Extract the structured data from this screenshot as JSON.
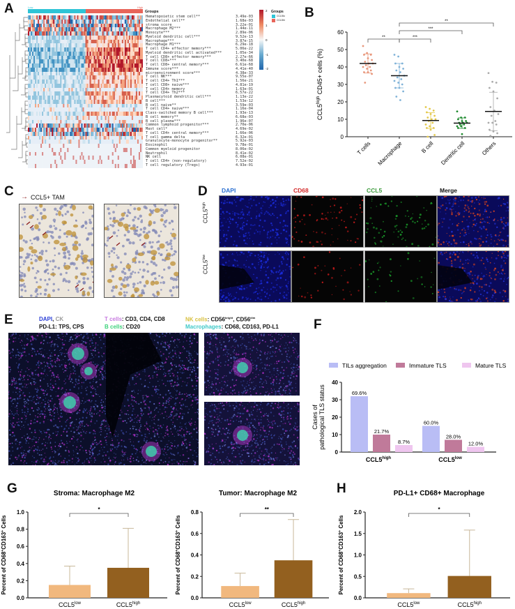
{
  "panels": {
    "A": {
      "letter": "A",
      "group_bar": {
        "low_label": "Low",
        "high_label": "High",
        "low_color": "#2ec4d6",
        "high_color": "#e8655a"
      },
      "groups_header": "Groups",
      "legend": {
        "title": "Groups",
        "items": [
          {
            "label": "CCL5lo",
            "color": "#2ec4d6"
          },
          {
            "label": "CCL5hi",
            "color": "#e8655a"
          }
        ],
        "scale_ticks": [
          "2",
          "1",
          "0",
          "-1",
          "-2"
        ],
        "scale_colors": {
          "high": "#b2182b",
          "mid": "#f7f7f7",
          "low": "#2166ac"
        }
      },
      "rows": [
        {
          "label": "Hematopoietic stem cell**",
          "p": "3.49e-03",
          "pattern": "mixed"
        },
        {
          "label": "Endothelial cell**",
          "p": "1.68e-03",
          "pattern": "mixed"
        },
        {
          "label": "stroma score",
          "p": "3.22e-01",
          "pattern": "mixed"
        },
        {
          "label": "Macrophage M2***",
          "p": "1.44e-11",
          "pattern": "mixed"
        },
        {
          "label": "Monocyte***",
          "p": "2.89e-06",
          "pattern": "mixed"
        },
        {
          "label": "Myeloid dendritic cell***",
          "p": "9.52e-13",
          "pattern": "split"
        },
        {
          "label": "Macrophage***",
          "p": "3.87e-15",
          "pattern": "split"
        },
        {
          "label": "Macrophage M1***",
          "p": "6.29e-18",
          "pattern": "split"
        },
        {
          "label": "T cell CD4+ effector memory***",
          "p": "5.06e-22",
          "pattern": "strong"
        },
        {
          "label": "Myeloid dendritic cell activated***",
          "p": "1.05e-34",
          "pattern": "strong"
        },
        {
          "label": "T cell CD8+ effector memory***",
          "p": "2.27e-66",
          "pattern": "strong"
        },
        {
          "label": "T cell CD8+***",
          "p": "3.40e-68",
          "pattern": "strong"
        },
        {
          "label": "T cell CD8+ central memory***",
          "p": "6.61e-68",
          "pattern": "strong"
        },
        {
          "label": "Immune score***",
          "p": "4.41e-40",
          "pattern": "strong"
        },
        {
          "label": "microenvironment score***",
          "p": "4.38e-33",
          "pattern": "split"
        },
        {
          "label": "T cell NK***",
          "p": "9.55e-07",
          "pattern": "split"
        },
        {
          "label": "T cell CD4+ Th1***",
          "p": "1.56e-21",
          "pattern": "split"
        },
        {
          "label": "T cell CD8+ naive***",
          "p": "4.81e-19",
          "pattern": "split"
        },
        {
          "label": "T cell CD4+ memory",
          "p": "1.63e-01",
          "pattern": "pale"
        },
        {
          "label": "T cell CD4+ Th2***",
          "p": "6.57e-22",
          "pattern": "split"
        },
        {
          "label": "Plasmacytoid dendritic cell***",
          "p": "1.13e-22",
          "pattern": "split"
        },
        {
          "label": "B cell***",
          "p": "1.53e-12",
          "pattern": "split"
        },
        {
          "label": "B cell naive**",
          "p": "3.59e-03",
          "pattern": "pale"
        },
        {
          "label": "T cell CD4+ naive***",
          "p": "1.16e-04",
          "pattern": "pale"
        },
        {
          "label": "Class-switched memory B cell***",
          "p": "1.93e-13",
          "pattern": "split"
        },
        {
          "label": "B cell memory**",
          "p": "6.68e-03",
          "pattern": "pale"
        },
        {
          "label": "B cell plasma***",
          "p": "1.96e-07",
          "pattern": "pale"
        },
        {
          "label": "Common lymphoid progenitor***",
          "p": "2.70e-06",
          "pattern": "mixed"
        },
        {
          "label": "Mast cell*",
          "p": "4.69e-02",
          "pattern": "mixed"
        },
        {
          "label": "T cell CD4+ central memory***",
          "p": "1.66e-06",
          "pattern": "mixed"
        },
        {
          "label": "T cell gamma delta",
          "p": "6.32e-01",
          "pattern": "pale"
        },
        {
          "label": "Granulocyte-monocyte progenitor**",
          "p": "5.92e-03",
          "pattern": "pale"
        },
        {
          "label": "Eosinophil",
          "p": "9.78e-01",
          "pattern": "sparse"
        },
        {
          "label": "Common myeloid progenitor",
          "p": "8.06e-02",
          "pattern": "sparse"
        },
        {
          "label": "Neutrophil",
          "p": "8.41e-02",
          "pattern": "sparse"
        },
        {
          "label": "NK cell",
          "p": "6.08e-01",
          "pattern": "sparse"
        },
        {
          "label": "T cell CD4+ (non-regulatory)",
          "p": "7.52e-02",
          "pattern": "sparse"
        },
        {
          "label": "T cell regulatory (Tregs)",
          "p": "4.93e-01",
          "pattern": "sparse"
        }
      ]
    },
    "B": {
      "letter": "B"
    },
    "C": {
      "letter": "C",
      "legend_label": "CCL5+ TAM",
      "arrow_color": "#8b1a1a"
    },
    "D": {
      "letter": "D",
      "columns": [
        {
          "label": "DAPI",
          "color": "#2a6fd1"
        },
        {
          "label": "CD68",
          "color": "#d42a2a"
        },
        {
          "label": "CCL5",
          "color": "#3c9a3c"
        },
        {
          "label": "Merge",
          "color": "#111111"
        }
      ],
      "rows": [
        {
          "label": "CCL5",
          "sup": "high"
        },
        {
          "label": "CCL5",
          "sup": "low"
        }
      ]
    },
    "E": {
      "letter": "E",
      "legend": {
        "line1": [
          {
            "text": "DAPI",
            "color": "#2b3fd6"
          },
          {
            "text": ", ",
            "color": "#111"
          },
          {
            "text": "CK",
            "color": "#999999"
          }
        ],
        "line2": "PD-L1: TPS, CPS",
        "tcells": {
          "name": "T cells",
          "markers": ": CD3, CD4, CD8",
          "color": "#c77be0"
        },
        "bcells": {
          "name": "B cells",
          "markers": ": CD20",
          "color": "#3ed27c"
        },
        "nkcells": {
          "name": "NK cells",
          "markers": ": CD56",
          "sup1": "bright",
          "mid": ", CD56",
          "sup2": "dim",
          "color": "#d8c040"
        },
        "macrophages": {
          "name": "Macrophages",
          "markers": ": CD68, CD163, PD-L1",
          "color": "#3ec8c8"
        }
      }
    },
    "F": {
      "letter": "F"
    },
    "G": {
      "letter": "G"
    },
    "H": {
      "letter": "H"
    }
  },
  "chart_data": [
    {
      "id": "B",
      "type": "scatter",
      "title": "",
      "xlabel": "",
      "ylabel": "CCL5high CD45+ cells (%)",
      "ylim": [
        0,
        60
      ],
      "yticks": [
        0,
        10,
        20,
        30,
        40,
        50,
        60
      ],
      "categories": [
        "T cells",
        "Macrophage",
        "B cell",
        "Dentritic cell",
        "Others"
      ],
      "colors": [
        "#e8967a",
        "#7fb2d8",
        "#e3c84a",
        "#1e8a2e",
        "#aaaaaa"
      ],
      "means": [
        42,
        35,
        9.3,
        7.8,
        14.5
      ],
      "sd": [
        5.5,
        7,
        4.5,
        3,
        11
      ],
      "points": [
        [
          52,
          48,
          47,
          47,
          45,
          44,
          43,
          42,
          42,
          41,
          40,
          40,
          39,
          38,
          37,
          37,
          36,
          31
        ],
        [
          47,
          46,
          42,
          42,
          40,
          39,
          38,
          37,
          35,
          34,
          33,
          32,
          31,
          30,
          28,
          28,
          26,
          23,
          21
        ],
        [
          17,
          16,
          15,
          14,
          13,
          12,
          11,
          10,
          10,
          9,
          8,
          7,
          6,
          5,
          5,
          4,
          1,
          0
        ],
        [
          14.5,
          11,
          11,
          10,
          9,
          9,
          8,
          8,
          8,
          7,
          7,
          6,
          6,
          5,
          5,
          1.5
        ],
        [
          36.5,
          31.5,
          31,
          28,
          26,
          22,
          17,
          15,
          13,
          12,
          9,
          8,
          8,
          7,
          4,
          3,
          2,
          0.5
        ]
      ],
      "significance": [
        {
          "from": "T cells",
          "to": "Macrophage",
          "label": "**"
        },
        {
          "from": "Macrophage",
          "to": "B cell",
          "label": "***"
        },
        {
          "from": "Macrophage",
          "to": "Dentritic cell",
          "label": "***"
        },
        {
          "from": "Macrophage",
          "to": "Others",
          "label": "**"
        }
      ]
    },
    {
      "id": "F",
      "type": "bar",
      "title": "",
      "xlabel": "",
      "ylabel": "Cases of pathological TLS status",
      "ylim": [
        0,
        40
      ],
      "yticks": [
        0,
        10,
        20,
        30,
        40
      ],
      "categories": [
        "CCL5high",
        "CCL5low"
      ],
      "category_labels": [
        {
          "base": "CCL5",
          "sup": "high"
        },
        {
          "base": "CCL5",
          "sup": "low"
        }
      ],
      "legend_position": "top",
      "series": [
        {
          "name": "TILs aggregation",
          "color": "#b9bdf5",
          "values": [
            32,
            15
          ],
          "labels": [
            "69.6%",
            "60.0%"
          ]
        },
        {
          "name": "Immature TLS",
          "color": "#c07a9a",
          "values": [
            10,
            7
          ],
          "labels": [
            "21.7%",
            "28.0%"
          ]
        },
        {
          "name": "Mature TLS",
          "color": "#efc6ef",
          "values": [
            4,
            3
          ],
          "labels": [
            "8.7%",
            "12.0%"
          ]
        }
      ]
    },
    {
      "id": "G1",
      "type": "bar",
      "title": "Stroma: Macrophage M2",
      "ylabel": "Percent of CD68+CD163+ Cells",
      "ylim": [
        0,
        1.0
      ],
      "yticks": [
        "0.0",
        "0.2",
        "0.4",
        "0.6",
        "0.8",
        "1.0"
      ],
      "categories": [
        "CCL5low",
        "CCL5high"
      ],
      "category_labels": [
        {
          "base": "CCL5",
          "sup": "low"
        },
        {
          "base": "CCL5",
          "sup": "high"
        }
      ],
      "values": [
        0.15,
        0.35
      ],
      "error_upper": [
        0.37,
        0.81
      ],
      "colors": [
        "#f1b87e",
        "#93601f"
      ],
      "significance": "*"
    },
    {
      "id": "G2",
      "type": "bar",
      "title": "Tumor: Macrophage M2",
      "ylabel": "Percent of CD68+CD163+ Cells",
      "ylim": [
        0,
        0.8
      ],
      "yticks": [
        "0.0",
        "0.2",
        "0.4",
        "0.6",
        "0.8"
      ],
      "categories": [
        "CCL5low",
        "CCL5high"
      ],
      "category_labels": [
        {
          "base": "CCL5",
          "sup": "low"
        },
        {
          "base": "CCL5",
          "sup": "high"
        }
      ],
      "values": [
        0.11,
        0.35
      ],
      "error_upper": [
        0.23,
        0.73
      ],
      "colors": [
        "#f1b87e",
        "#93601f"
      ],
      "significance": "**"
    },
    {
      "id": "H",
      "type": "bar",
      "title": "PD-L1+ CD68+ Macrophage",
      "ylabel": "Percent of CD68+CD163+ Cells",
      "ylim": [
        0,
        2.0
      ],
      "yticks": [
        "0.0",
        "0.5",
        "1.0",
        "1.5",
        "2.0"
      ],
      "categories": [
        "CCL5low",
        "CCL5high"
      ],
      "category_labels": [
        {
          "base": "CCL5",
          "sup": "low"
        },
        {
          "base": "CCL5",
          "sup": "high"
        }
      ],
      "values": [
        0.11,
        0.51
      ],
      "error_upper": [
        0.21,
        1.58
      ],
      "colors": [
        "#f1b87e",
        "#93601f"
      ],
      "significance": "*"
    }
  ]
}
